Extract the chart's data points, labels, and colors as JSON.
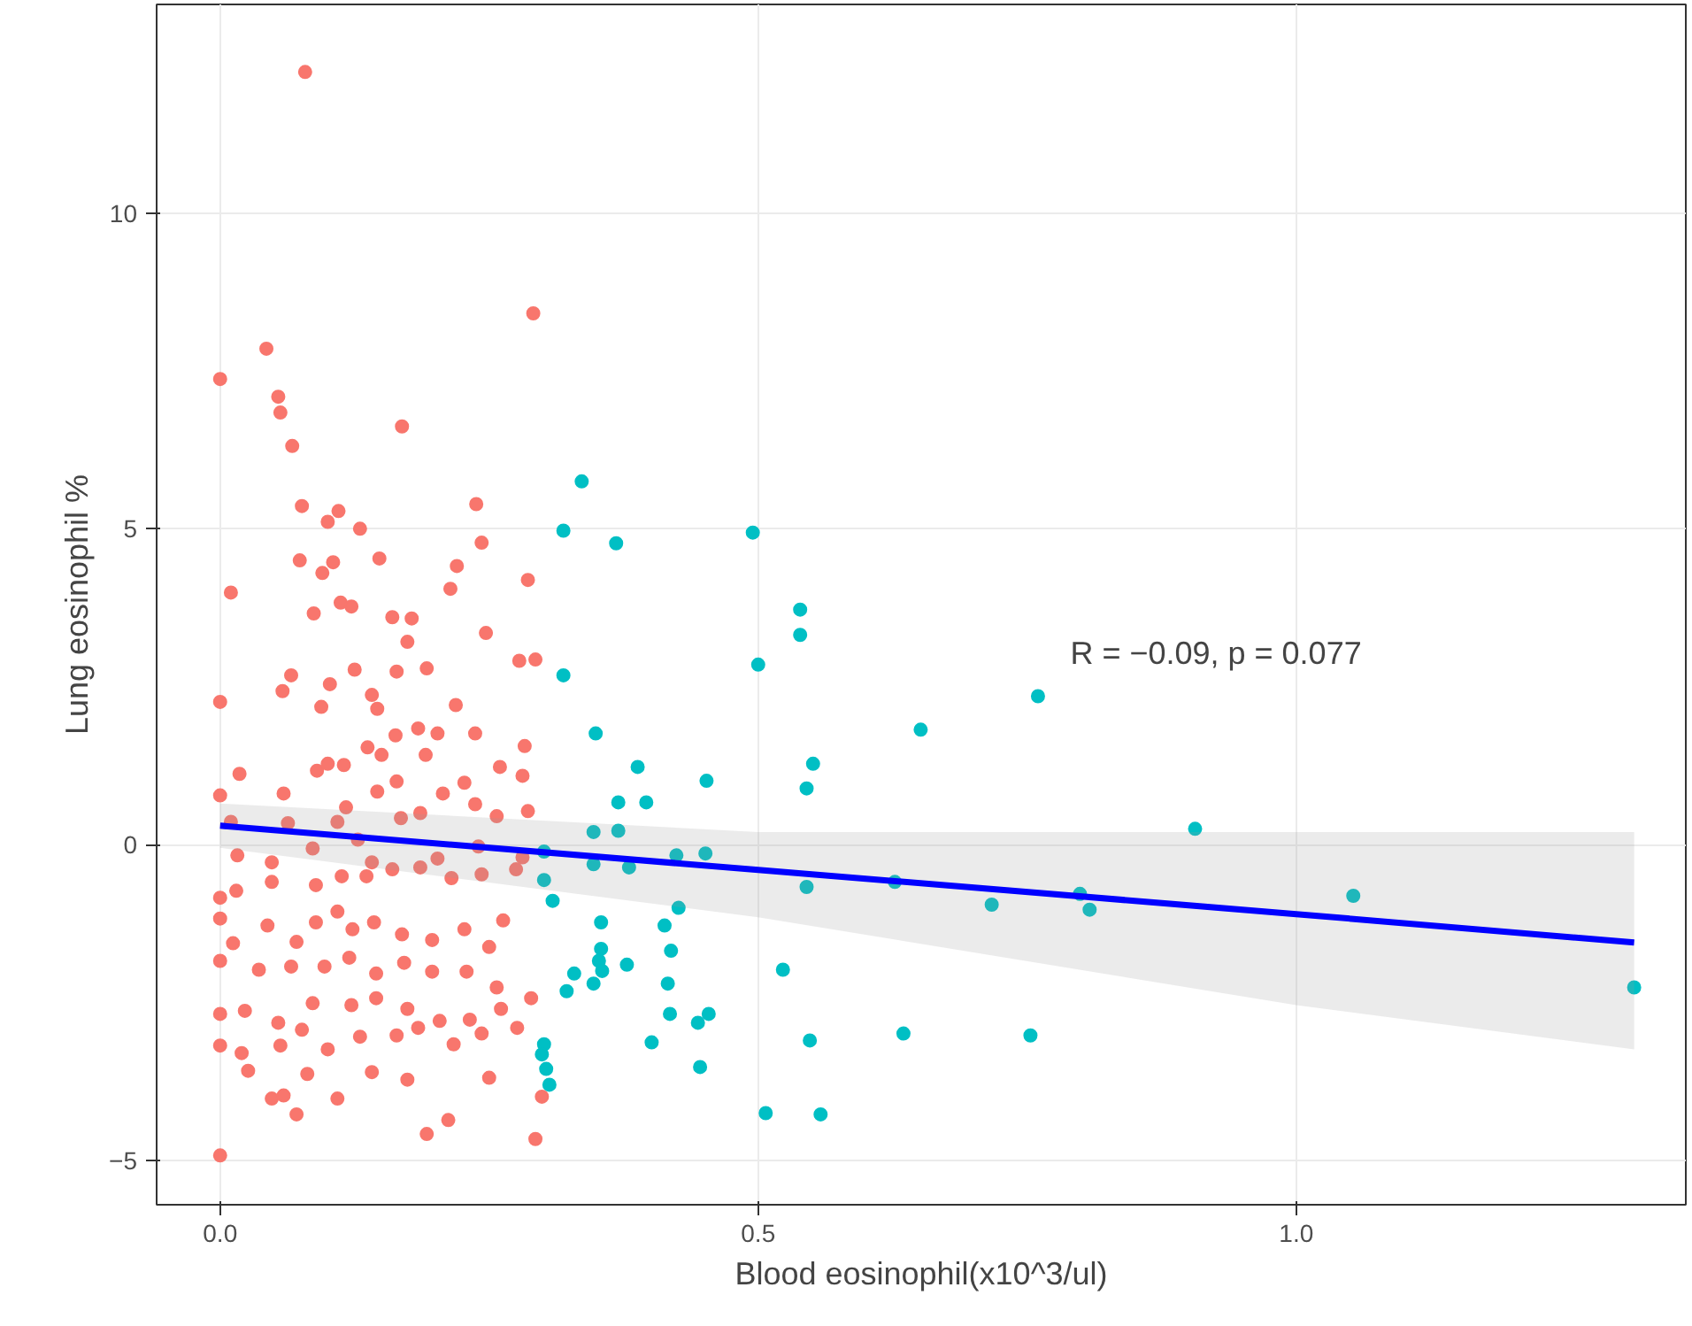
{
  "chart_data": {
    "type": "scatter",
    "xlabel": "Blood eosinophil(x10^3/ul)",
    "ylabel": "Lung eosinophil %",
    "xlim": [
      -0.059,
      1.362
    ],
    "ylim": [
      -5.7,
      13.3
    ],
    "xticks": [
      {
        "value": 0,
        "label": "0.0"
      },
      {
        "value": 0.5,
        "label": "0.5"
      },
      {
        "value": 1,
        "label": "1.0"
      }
    ],
    "yticks": [
      -5,
      0,
      5,
      10
    ],
    "grid": true,
    "annotations": [
      "R = −0.09, p = 0.077"
    ],
    "series": [
      {
        "color": "#f8766d",
        "marker": "circle",
        "x": [
          0.079,
          0.291,
          0,
          0.043,
          0.054,
          0.056,
          0.169,
          0.067,
          0.238,
          0.076,
          0.11,
          0.13,
          0.1,
          0.148,
          0.243,
          0.22,
          0.01,
          0.074,
          0.095,
          0.105,
          0.087,
          0.112,
          0.122,
          0.16,
          0.178,
          0.214,
          0.174,
          0.192,
          0.247,
          0.286,
          0.102,
          0.125,
          0.066,
          0.058,
          0.094,
          0.141,
          0.146,
          0.164,
          0.219,
          0.278,
          0.293,
          0,
          0.163,
          0.184,
          0.202,
          0.237,
          0.26,
          0.283,
          0.281,
          0.018,
          0.059,
          0.09,
          0.115,
          0.137,
          0.15,
          0.146,
          0.164,
          0.168,
          0.207,
          0.227,
          0.257,
          0.286,
          0,
          0.1,
          0.191,
          0.117,
          0.01,
          0.063,
          0.109,
          0.186,
          0.237,
          0.128,
          0.016,
          0.048,
          0.086,
          0.141,
          0.202,
          0.24,
          0.281,
          0,
          0.015,
          0.048,
          0.089,
          0.113,
          0.136,
          0.16,
          0.186,
          0.215,
          0.243,
          0.275,
          0,
          0.012,
          0.044,
          0.071,
          0.089,
          0.109,
          0.123,
          0.143,
          0.169,
          0.197,
          0.227,
          0.25,
          0.263,
          0,
          0.036,
          0.066,
          0.097,
          0.12,
          0.145,
          0.171,
          0.197,
          0.229,
          0.257,
          0,
          0.023,
          0.054,
          0.086,
          0.122,
          0.145,
          0.174,
          0.204,
          0.232,
          0.261,
          0.289,
          0,
          0.02,
          0.056,
          0.076,
          0.1,
          0.13,
          0.164,
          0.184,
          0.217,
          0.243,
          0.276,
          0.026,
          0.081,
          0.141,
          0.174,
          0.25,
          0.048,
          0.059,
          0.109,
          0.071,
          0.192,
          0.212,
          0.293,
          0,
          0.299
        ],
        "values": [
          12.23,
          8.41,
          7.37,
          7.85,
          7.09,
          6.84,
          6.62,
          6.31,
          5.39,
          5.36,
          5.28,
          5.0,
          5.11,
          4.53,
          4.78,
          4.41,
          3.99,
          4.5,
          4.3,
          4.47,
          3.66,
          3.83,
          3.77,
          3.6,
          3.58,
          4.05,
          3.21,
          2.79,
          3.35,
          4.19,
          2.54,
          2.77,
          2.68,
          2.43,
          2.18,
          2.37,
          2.15,
          2.74,
          2.21,
          2.91,
          2.93,
          2.26,
          1.73,
          1.84,
          1.76,
          1.76,
          1.23,
          1.56,
          1.09,
          1.12,
          0.81,
          1.17,
          1.26,
          1.54,
          1.42,
          0.84,
          1.0,
          0.42,
          0.81,
          0.98,
          0.45,
          0.53,
          0.78,
          1.28,
          1.42,
          0.59,
          0.36,
          0.34,
          0.36,
          0.5,
          0.64,
          0.08,
          -0.17,
          -0.28,
          -0.06,
          -0.28,
          -0.22,
          -0.03,
          -0.2,
          -0.84,
          -0.73,
          -0.59,
          -0.64,
          -0.5,
          -0.5,
          -0.39,
          -0.36,
          -0.53,
          -0.47,
          -0.39,
          -1.17,
          -1.56,
          -1.28,
          -1.54,
          -1.23,
          -1.06,
          -1.34,
          -1.23,
          -1.42,
          -1.51,
          -1.34,
          -1.62,
          -1.2,
          -1.84,
          -1.98,
          -1.93,
          -1.93,
          -1.79,
          -2.04,
          -1.87,
          -2.01,
          -2.01,
          -2.26,
          -2.68,
          -2.63,
          -2.82,
          -2.51,
          -2.54,
          -2.43,
          -2.6,
          -2.79,
          -2.77,
          -2.6,
          -2.43,
          -3.18,
          -3.3,
          -3.18,
          -2.93,
          -3.24,
          -3.04,
          -3.02,
          -2.9,
          -3.16,
          -2.99,
          -2.9,
          -3.58,
          -3.63,
          -3.6,
          -3.72,
          -3.69,
          -4.02,
          -3.97,
          -4.02,
          -4.27,
          -4.58,
          -4.36,
          -4.66,
          -4.92,
          -3.99
        ]
      },
      {
        "color": "#00bfc4",
        "marker": "circle",
        "x": [
          0.336,
          0.319,
          0.368,
          0.495,
          0.539,
          0.539,
          0.319,
          0.5,
          0.349,
          0.651,
          0.76,
          0.388,
          0.551,
          0.452,
          0.545,
          0.396,
          0.37,
          0.37,
          0.906,
          0.347,
          0.301,
          0.347,
          0.38,
          0.424,
          0.451,
          0.545,
          0.627,
          0.717,
          0.799,
          0.808,
          1.053,
          0.301,
          0.309,
          0.354,
          0.426,
          0.413,
          0.354,
          0.419,
          0.352,
          0.355,
          0.378,
          0.329,
          0.347,
          0.416,
          0.322,
          0.523,
          0.418,
          0.454,
          0.401,
          0.444,
          0.548,
          0.635,
          0.753,
          1.314,
          0.301,
          0.299,
          0.303,
          0.306,
          0.507,
          0.558,
          0.446
        ],
        "values": [
          5.75,
          4.97,
          4.77,
          4.94,
          3.72,
          3.32,
          2.68,
          2.85,
          1.76,
          1.82,
          2.35,
          1.23,
          1.28,
          1.01,
          0.89,
          0.67,
          0.67,
          0.22,
          0.25,
          0.2,
          -0.11,
          -0.31,
          -0.36,
          -0.17,
          -0.14,
          -0.67,
          -0.59,
          -0.95,
          -0.78,
          -1.03,
          -0.81,
          -0.56,
          -0.89,
          -1.23,
          -1.0,
          -1.28,
          -1.65,
          -1.68,
          -1.84,
          -2.0,
          -1.9,
          -2.04,
          -2.2,
          -2.2,
          -2.32,
          -1.98,
          -2.68,
          -2.68,
          -3.13,
          -2.82,
          -3.1,
          -2.99,
          -3.02,
          -2.26,
          -3.16,
          -3.32,
          -3.55,
          -3.8,
          -4.25,
          -4.27,
          -3.52
        ]
      },
      {
        "type": "line",
        "marker": "none",
        "color": "#0000ff",
        "x": [
          0,
          0.5,
          1.0,
          1.314
        ],
        "values": [
          0.3,
          -0.4,
          -1.1,
          -1.55
        ],
        "lower": [
          -0.05,
          -1.15,
          -2.54,
          -3.24
        ],
        "upper": [
          0.65,
          0.2,
          0.2,
          0.2
        ]
      }
    ]
  }
}
